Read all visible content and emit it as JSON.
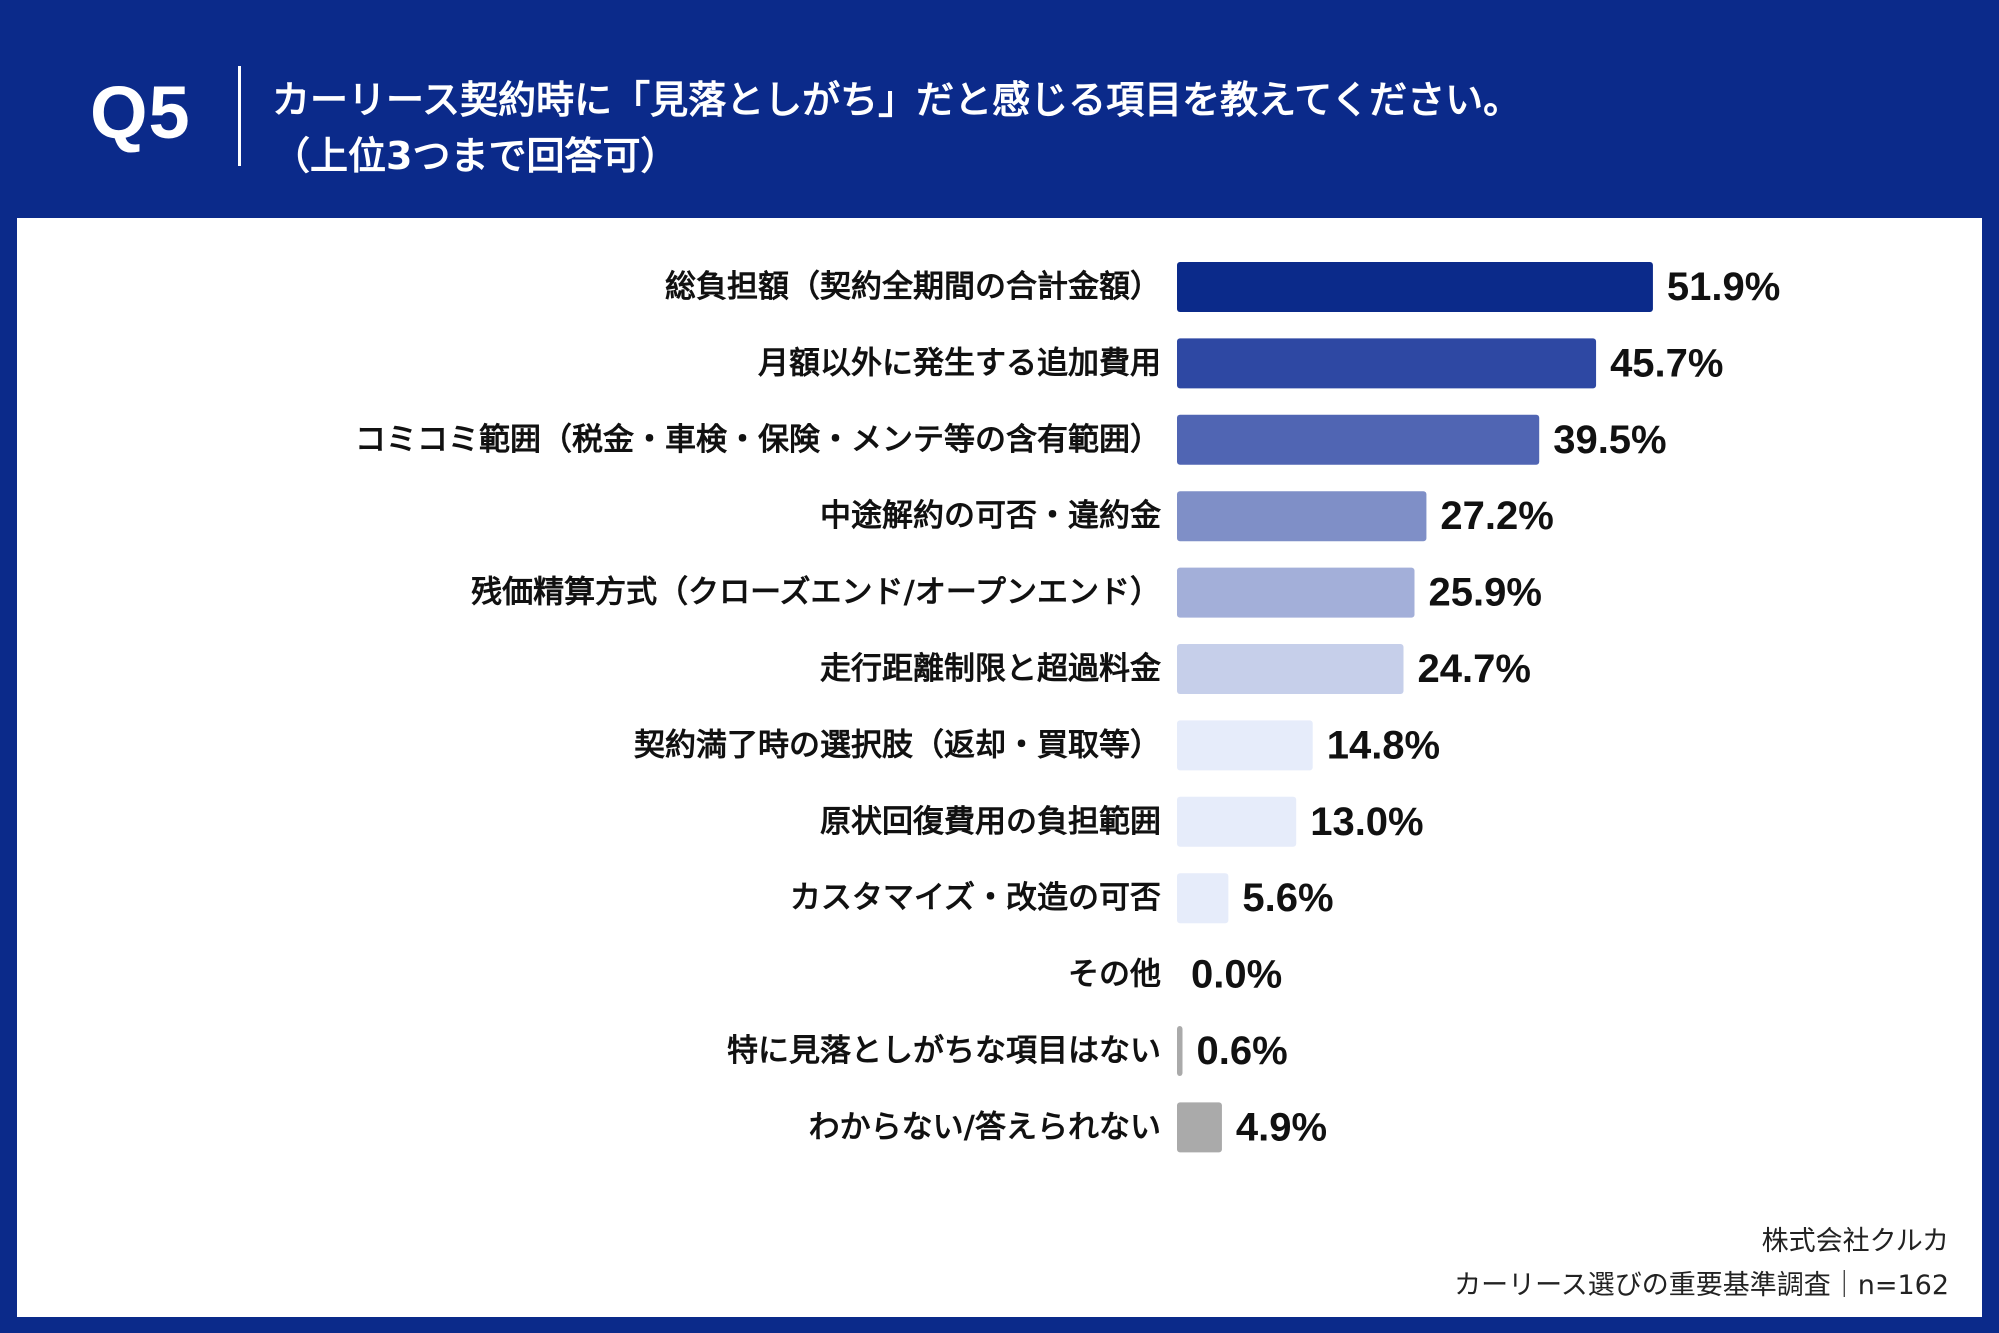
{
  "header": {
    "question_number": "Q5",
    "title_line1": "カーリース契約時に「見落としがち」だと感じる項目を教えてください。",
    "title_line2": "（上位3つまで回答可）"
  },
  "chart_data": {
    "type": "bar",
    "orientation": "horizontal",
    "categories": [
      "総負担額（契約全期間の合計金額）",
      "月額以外に発生する追加費用",
      "コミコミ範囲（税金・車検・保険・メンテ等の含有範囲）",
      "中途解約の可否・違約金",
      "残価精算方式（クローズエンド/オープンエンド）",
      "走行距離制限と超過料金",
      "契約満了時の選択肢（返却・買取等）",
      "原状回復費用の負担範囲",
      "カスタマイズ・改造の可否",
      "その他",
      "特に見落としがちな項目はない",
      "わからない/答えられない"
    ],
    "values": [
      51.9,
      45.7,
      39.5,
      27.2,
      25.9,
      24.7,
      14.8,
      13.0,
      5.6,
      0.0,
      0.6,
      4.9
    ],
    "value_labels": [
      "51.9%",
      "45.7%",
      "39.5%",
      "27.2%",
      "25.9%",
      "24.7%",
      "14.8%",
      "13.0%",
      "5.6%",
      "0.0%",
      "0.6%",
      "4.9%"
    ],
    "colors": [
      "#0b2a8a",
      "#2e48a3",
      "#5065b3",
      "#7f8fc7",
      "#a3afd9",
      "#c6cfea",
      "#e6ecfa",
      "#e6ecfa",
      "#e6ecfa",
      "#e6ecfa",
      "#aaaaaa",
      "#aaaaaa"
    ],
    "unit": "%",
    "xlim": [
      0,
      100
    ],
    "grid": false,
    "legend": "none"
  },
  "footer": {
    "company": "株式会社クルカ",
    "survey": "カーリース選びの重要基準調査｜n=162"
  }
}
